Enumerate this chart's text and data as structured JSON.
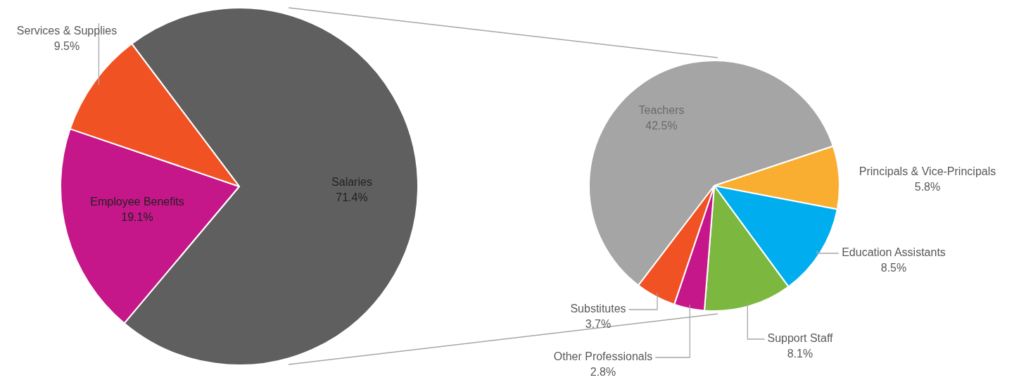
{
  "chart_data": [
    {
      "type": "pie",
      "categories": [
        "Salaries",
        "Employee Benefits",
        "Services & Supplies"
      ],
      "values": [
        71.4,
        19.1,
        9.5
      ],
      "colors": [
        "#5f5f5f",
        "#c5168a",
        "#f05223"
      ],
      "value_labels": [
        "71.4%",
        "19.1%",
        "9.5%"
      ]
    },
    {
      "type": "pie",
      "categories": [
        "Teachers",
        "Principals & Vice-Principals",
        "Education Assistants",
        "Support Staff",
        "Other Professionals",
        "Substitutes"
      ],
      "values": [
        42.5,
        5.8,
        8.5,
        8.1,
        2.8,
        3.7
      ],
      "colors": [
        "#a5a5a5",
        "#f9ae32",
        "#00aeef",
        "#7cb83f",
        "#c5168a",
        "#f05223"
      ],
      "value_labels": [
        "42.5%",
        "5.8%",
        "8.5%",
        "8.1%",
        "2.8%",
        "3.7%"
      ]
    }
  ]
}
